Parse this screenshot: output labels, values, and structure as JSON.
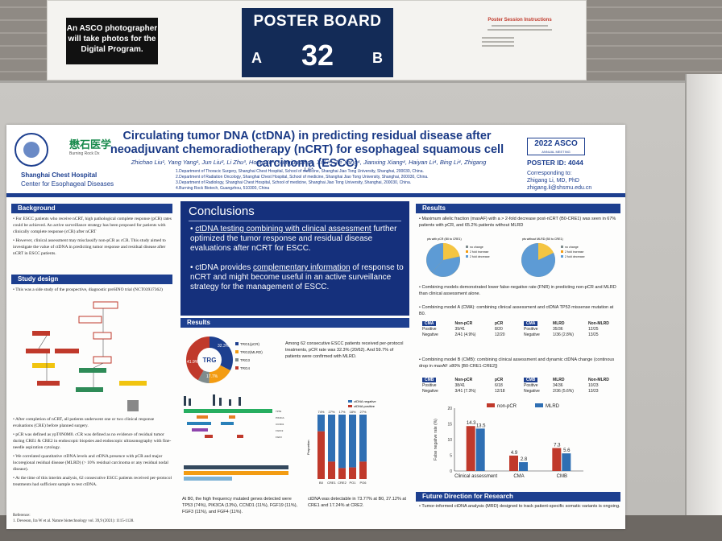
{
  "sign": {
    "photographer_note": "An ASCO photographer will take photos for the Digital Program.",
    "poster_board_label": "POSTER BOARD",
    "board_number": "32",
    "side_a": "A",
    "side_b": "B",
    "instructions_title": "Poster Session Instructions"
  },
  "poster": {
    "logo_text": "懋石医学",
    "logo_sub": "Burning Rock Dx",
    "hospital": "Shanghai Chest Hospital",
    "center": "Center for Esophageal Diseases",
    "title": "Circulating tumor DNA (ctDNA) in predicting residual disease after neoadjuvant chemoradiotherapy (nCRT) for esophageal squamous cell carcinoma (ESCC)",
    "authors": "Zhichao Liu¹, Yang Yang¹, Jun Liu², Li Zhu³, Hong Yu³, Mingjun Zhu⁴, Xi Li⁴, Jie Yang⁴, Jianxing Xiang⁴, Haiyan Li⁴, Bing Li⁴, Zhigang Li¹*",
    "affiliations": [
      "1.Department of Thoracic Surgery, Shanghai Chest Hospital, School of medicine, Shanghai Jiao Tong University, Shanghai, 200030, China.",
      "2.Department of Radiation Oncology, Shanghai Chest Hospital, School of medicine, Shanghai Jiao Tong University, Shanghai, 200030, China.",
      "3.Department of Radiology, Shanghai Chest Hospital, School of medicine, Shanghai Jiao Tong University, Shanghai, 200030, China.",
      "4.Burning Rock Biotech, Guangzhou, 510300, China"
    ],
    "meeting_year": "2022",
    "meeting_name": "ASCO",
    "meeting_sub": "ANNUAL MEETING",
    "poster_id": "POSTER ID:  4044",
    "corr_label": "Corresponding to:",
    "corr_name": "Zhigang Li, MD, PhD",
    "corr_email": "zhigang.li@shsmu.edu.cn"
  },
  "background": {
    "heading": "Background",
    "bullets": [
      "For ESCC patients who receive nCRT, high pathological complete response (pCR) rates could be achieved. An active surveillance strategy has been proposed for patients with clinically complete response (cCR) after nCRT",
      "However, clinical assessment may misclassify non-pCR as cCR. This study aimed to investigate the value of ctDNA in predicting tumor response and residual disease after nCRT in ESCC patients."
    ]
  },
  "study_design": {
    "heading": "Study design",
    "intro": "This was a side study of the prospective, diagnostic preSINO trial (NCT03937362)",
    "bullets": [
      "After completion of nCRT, all patients underwent one or two clinical response evaluations (CRE) before planned surgery.",
      "pCR was defined as ypT0N0M0. cCR was defined as no evidence of residual tumor during CRE1 & CRE2 in endoscopic biopsies and endoscopic ultrasonography with fine-needle aspiration cytology.",
      "We correlated quantitative ctDNA levels and ctDNA presence with pCR and major locoregional residual disease (MLRD) (> 10% residual carcinoma or any residual nodal disease).",
      "At the time of this interim analysis, 62 consecutive ESCC patients received per-protocol treatments had sufficient sample to test ctDNA."
    ],
    "reference_label": "Reference:",
    "reference": "1. Deveson, Ira W et al. Nature biotechnology vol. 39,9 (2021): 1115-1128."
  },
  "conclusions": {
    "heading": "Conclusions",
    "item1_pre": "ctDNA testing combining with clinical assessment",
    "item1_post": " further optimized the tumor response and residual disease evaluations after nCRT for ESCC.",
    "item2_pre": "ctDNA provides ",
    "item2_u": "complementary information",
    "item2_post": " of response to nCRT and might become useful in an active surveillance strategy for the management of ESCC."
  },
  "results_mid": {
    "heading": "Results",
    "summary": "Among 62 consecutive ESCC patients received per-protocol treatments, pCR rate was 32.3% (20/62). And 59.7% of patients were confirmed with MLRD.",
    "mutation_text": "At B0, the high frequency mutated genes detected were TP53 (74%), PIK3CA (13%), CCND1 (11%), FGF19 (11%), FGF3 (11%), and FGF4 (11%).",
    "detect_text": "ctDNA was detectable in 73.77% at B0, 27.12% at CRE1 and 17.24% at CRE2.",
    "trg_center": "TRG",
    "trg_pcts": [
      "32.3%",
      "41.9%",
      "17.7%"
    ],
    "trg_legend": [
      "TRG1(pCR)",
      "TRG2(MLRD)",
      "TRG3",
      "TRG4"
    ],
    "bar_legend": [
      "ctDNA negative",
      "ctDNA positive"
    ],
    "bar_cats": [
      "B0",
      "CRE1",
      "CRE2",
      "PO1",
      "PO6"
    ],
    "bar_tops": [
      "74%",
      "27%",
      "17%",
      "18%",
      "27%"
    ],
    "bar_ylabel": "Proportion"
  },
  "results_right": {
    "heading": "Results",
    "p1": "Maximum allelic fraction (maxAF) with a > 2-fold decrease post-nCRT (B0-CRE1) was seen in 67% patients with pCR, and 65.2% patients without MLRD",
    "pie1_title": "pts with pCR (B0 to CRE1)",
    "pie2_title": "pts without MLRD (B0 to CRE1)",
    "pie_legend": [
      "no change",
      "2 fold increase",
      "2 fold decrease"
    ],
    "p2": "Combining models demonstrated lower false-negative rate (FNR) in predicting non-pCR and MLRD than clinical assessment alone.",
    "cma_title": "Combining model A (CMA): combining clinical assessment and ctDNA TP53 missense mutation at B0.",
    "cmb_title": "Combining model B (CMB): combining clinical assessment and dynamic ctDNA change (continous drop in maxAF ≥80% [B0-CRE1-CRE2])",
    "future_heading": "Future Direction for Research",
    "future_text": "Tumor-informed ctDNA analysis (MRD) designed to track patient-specific somatic variants is ongoing."
  },
  "tables": {
    "cma_left": {
      "tag": "CMA",
      "cols": [
        "Non-pCR",
        "pCR"
      ],
      "rows": [
        [
          "Positive",
          "39/41",
          "8/20"
        ],
        [
          "Negative",
          "2/41 (4.9%)",
          "12/20"
        ]
      ]
    },
    "cma_right": {
      "tag": "CMA",
      "cols": [
        "MLRD",
        "Non-MLRD"
      ],
      "rows": [
        [
          "Positive",
          "35/36",
          "12/25"
        ],
        [
          "Negative",
          "1/36 (2.8%)",
          "13/25"
        ]
      ]
    },
    "cmb_left": {
      "tag": "CMB",
      "cols": [
        "Non-pCR",
        "pCR"
      ],
      "rows": [
        [
          "Positive",
          "38/41",
          "6/18"
        ],
        [
          "Negative",
          "3/41 (7.3%)",
          "12/18"
        ]
      ]
    },
    "cmb_right": {
      "tag": "CMB",
      "cols": [
        "MLRD",
        "Non-MLRD"
      ],
      "rows": [
        [
          "Positive",
          "34/36",
          "10/23"
        ],
        [
          "Negative",
          "2/36 (5.6%)",
          "13/23"
        ]
      ]
    }
  },
  "chart_data": {
    "type": "bar",
    "categories": [
      "Clinical assessment",
      "CMA",
      "CMB"
    ],
    "series": [
      {
        "name": "non-pCR",
        "values": [
          14.3,
          4.9,
          7.3
        ]
      },
      {
        "name": "MLRD",
        "values": [
          13.5,
          2.8,
          5.6
        ]
      }
    ],
    "title": "",
    "xlabel": "",
    "ylabel": "False negative rate (%)",
    "ylim": [
      0,
      20
    ],
    "yticks": [
      0,
      5,
      10,
      15,
      20
    ],
    "colors": {
      "non-pCR": "#c0392b",
      "MLRD": "#2f6fb3"
    },
    "legend": "top"
  },
  "colors": {
    "navy": "#1d3f8f",
    "board": "#132b57"
  }
}
